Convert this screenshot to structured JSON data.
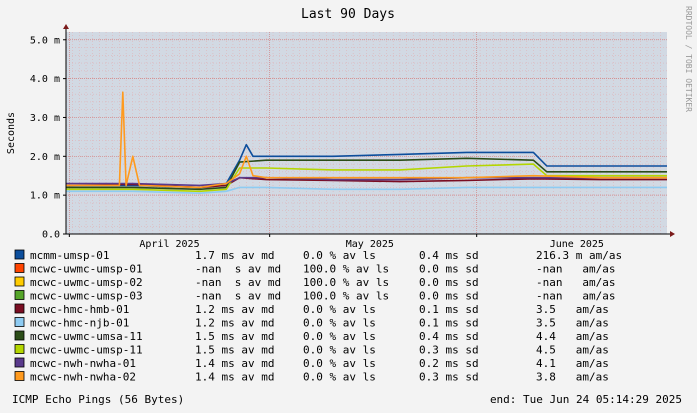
{
  "chart_data": {
    "type": "line",
    "title": "Last 90 Days",
    "ylabel": "Seconds",
    "watermark": "RRDTOOL / TOBI OETIKER",
    "ylim": [
      0.0,
      5.2
    ],
    "yticks": [
      {
        "value": 0.0,
        "label": "0.0"
      },
      {
        "value": 1.0,
        "label": "1.0 m"
      },
      {
        "value": 2.0,
        "label": "2.0 m"
      },
      {
        "value": 3.0,
        "label": "3.0 m"
      },
      {
        "value": 4.0,
        "label": "4.0 m"
      },
      {
        "value": 5.0,
        "label": "5.0 m"
      }
    ],
    "xlim": [
      0,
      90
    ],
    "xticks": [
      {
        "value": 15.5,
        "label": "April 2025"
      },
      {
        "value": 45.5,
        "label": "May 2025"
      },
      {
        "value": 76.5,
        "label": "June 2025"
      }
    ],
    "grid": true,
    "series": [
      {
        "name": "mcmm-umsp-01",
        "color": "#0c4e9c",
        "stats": [
          "1.7 ms av md",
          "0.0 % av ls",
          "0.4 ms sd",
          "216.3 m am/as"
        ],
        "x": [
          0,
          10,
          20,
          24,
          26,
          27,
          28,
          30,
          40,
          50,
          60,
          70,
          72,
          80,
          90
        ],
        "y": [
          1.25,
          1.25,
          1.2,
          1.3,
          1.9,
          2.3,
          2.0,
          2.0,
          2.0,
          2.05,
          2.1,
          2.1,
          1.75,
          1.75,
          1.75
        ]
      },
      {
        "name": "mcwc-uwmc-umsp-01",
        "color": "#ff4400",
        "stats": [
          "-nan  s av md",
          "100.0 % av ls",
          "0.0 ms sd",
          "-nan   am/as"
        ],
        "x": [],
        "y": []
      },
      {
        "name": "mcwc-uwmc-umsp-02",
        "color": "#ffcc00",
        "stats": [
          "-nan  s av md",
          "100.0 % av ls",
          "0.0 ms sd",
          "-nan   am/as"
        ],
        "x": [],
        "y": []
      },
      {
        "name": "mcwc-uwmc-umsp-03",
        "color": "#55a52a",
        "stats": [
          "-nan  s av md",
          "100.0 % av ls",
          "0.0 ms sd",
          "-nan   am/as"
        ],
        "x": [],
        "y": []
      },
      {
        "name": "mcwc-hmc-hmb-01",
        "color": "#7a0d22",
        "stats": [
          "1.2 ms av md",
          "0.0 % av ls",
          "0.1 ms sd",
          "3.5   am/as"
        ],
        "x": [
          0,
          10,
          20,
          24,
          26,
          30,
          40,
          50,
          60,
          70,
          80,
          90
        ],
        "y": [
          1.25,
          1.28,
          1.2,
          1.25,
          1.45,
          1.4,
          1.38,
          1.35,
          1.38,
          1.42,
          1.4,
          1.4
        ]
      },
      {
        "name": "mcwc-hmc-njb-01",
        "color": "#8ecbf2",
        "stats": [
          "1.2 ms av md",
          "0.0 % av ls",
          "0.1 ms sd",
          "3.5   am/as"
        ],
        "x": [
          0,
          10,
          20,
          24,
          26,
          30,
          40,
          50,
          60,
          70,
          80,
          90
        ],
        "y": [
          1.1,
          1.1,
          1.05,
          1.1,
          1.2,
          1.2,
          1.15,
          1.15,
          1.2,
          1.2,
          1.2,
          1.2
        ]
      },
      {
        "name": "mcwc-uwmc-umsa-11",
        "color": "#2b4d18",
        "stats": [
          "1.5 ms av md",
          "0.0 % av ls",
          "0.4 ms sd",
          "4.4   am/as"
        ],
        "x": [
          0,
          10,
          20,
          24,
          26,
          30,
          40,
          50,
          60,
          70,
          72,
          80,
          90
        ],
        "y": [
          1.2,
          1.2,
          1.15,
          1.2,
          1.85,
          1.9,
          1.9,
          1.9,
          1.95,
          1.9,
          1.6,
          1.6,
          1.6
        ]
      },
      {
        "name": "mcwc-uwmc-umsp-11",
        "color": "#b4d600",
        "stats": [
          "1.5 ms av md",
          "0.0 % av ls",
          "0.3 ms sd",
          "4.5   am/as"
        ],
        "x": [
          0,
          10,
          20,
          24,
          26,
          30,
          40,
          50,
          60,
          70,
          72,
          80,
          90
        ],
        "y": [
          1.15,
          1.15,
          1.1,
          1.15,
          1.7,
          1.7,
          1.65,
          1.65,
          1.75,
          1.8,
          1.5,
          1.5,
          1.5
        ]
      },
      {
        "name": "mcwc-nwh-nwha-01",
        "color": "#5a3a8c",
        "stats": [
          "1.4 ms av md",
          "0.0 % av ls",
          "0.2 ms sd",
          "4.1   am/as"
        ],
        "x": [
          0,
          10,
          20,
          24,
          26,
          30,
          40,
          50,
          60,
          70,
          80,
          90
        ],
        "y": [
          1.3,
          1.3,
          1.25,
          1.3,
          1.45,
          1.45,
          1.4,
          1.4,
          1.45,
          1.45,
          1.45,
          1.45
        ]
      },
      {
        "name": "mcwc-nwh-nwha-02",
        "color": "#ff9a1e",
        "stats": [
          "1.4 ms av md",
          "0.0 % av ls",
          "0.3 ms sd",
          "3.8   am/as"
        ],
        "x": [
          0,
          8,
          8.5,
          9,
          10,
          11,
          20,
          24,
          26,
          27,
          28,
          30,
          40,
          50,
          60,
          70,
          80,
          90
        ],
        "y": [
          1.25,
          1.25,
          3.65,
          1.25,
          2.0,
          1.25,
          1.2,
          1.3,
          1.55,
          2.0,
          1.5,
          1.45,
          1.45,
          1.45,
          1.45,
          1.5,
          1.45,
          1.45
        ]
      }
    ]
  },
  "footer": {
    "left": "ICMP Echo Pings (56 Bytes)",
    "right": "end: Tue Jun 24 05:14:29 2025"
  }
}
